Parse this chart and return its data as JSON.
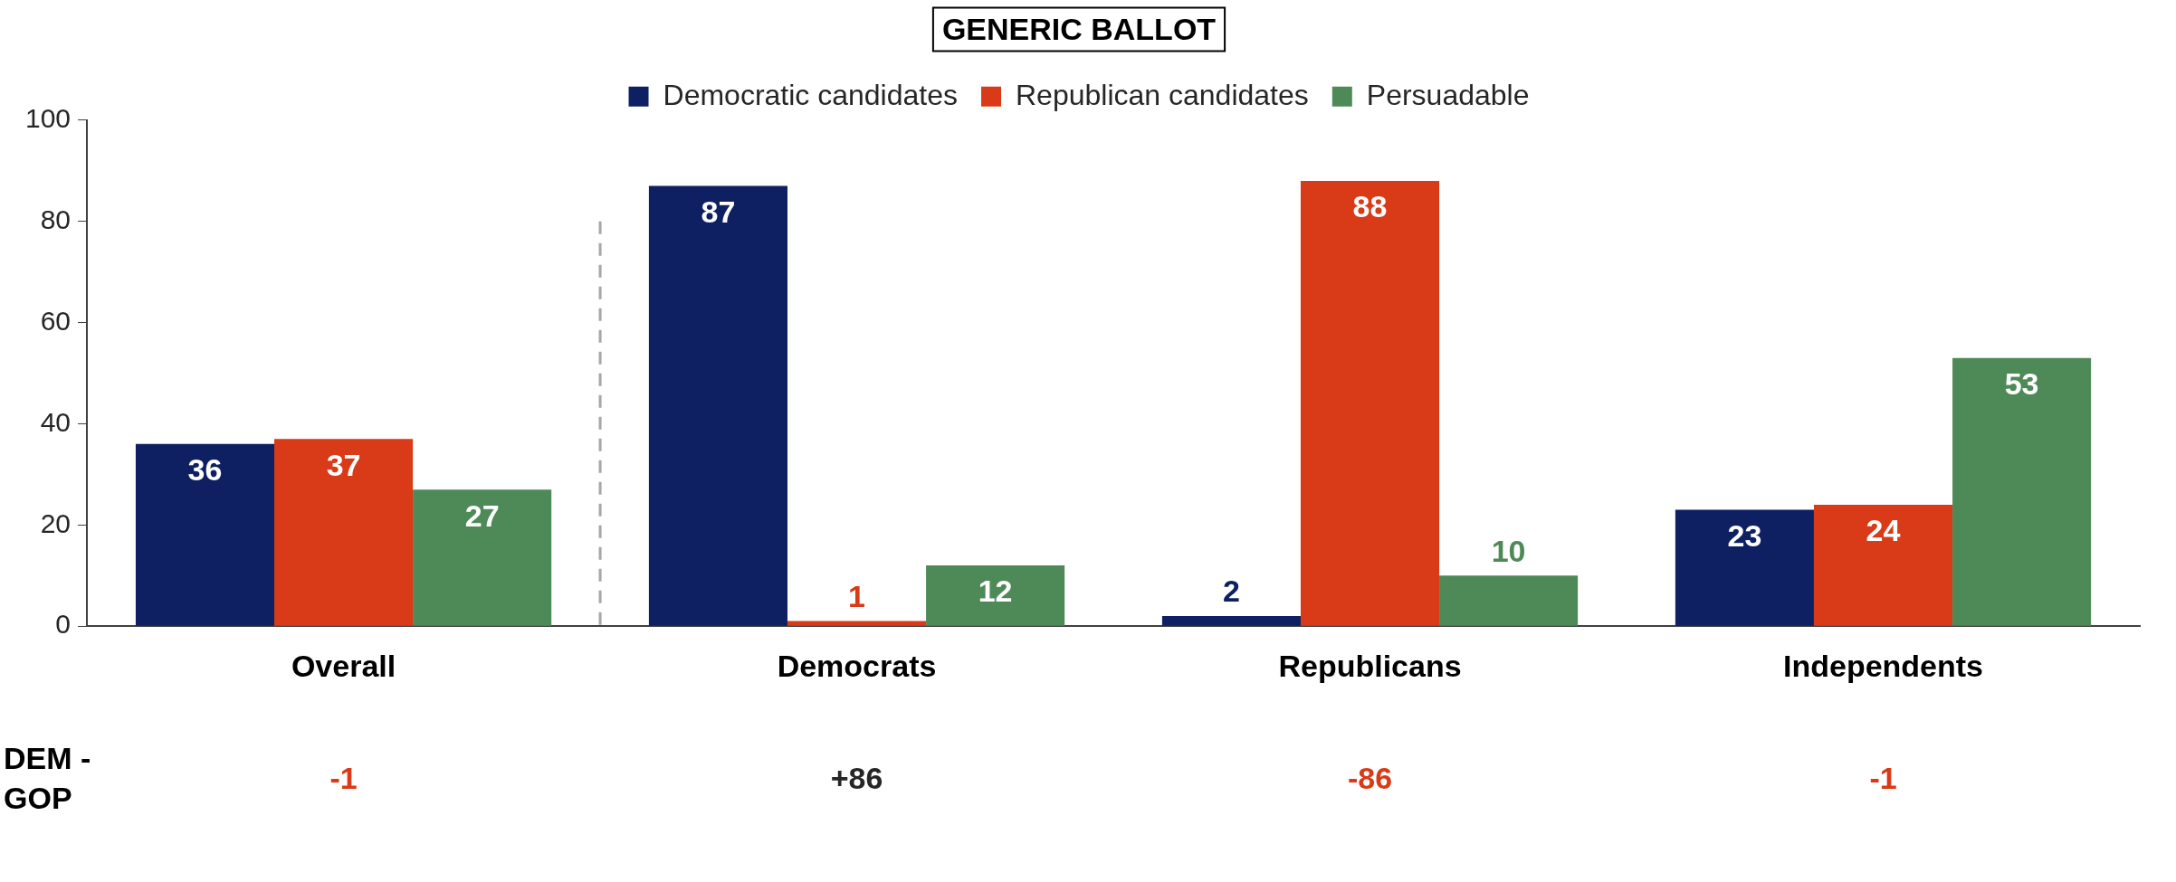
{
  "chart_data": {
    "type": "bar",
    "title": "GENERIC BALLOT",
    "categories": [
      "Overall",
      "Democrats",
      "Republicans",
      "Independents"
    ],
    "series": [
      {
        "name": "Democratic candidates",
        "color": "#0f2062",
        "values": [
          36,
          87,
          2,
          23
        ]
      },
      {
        "name": "Republican candidates",
        "color": "#d93a17",
        "values": [
          37,
          1,
          88,
          24
        ]
      },
      {
        "name": "Persuadable",
        "color": "#4e8a57",
        "values": [
          27,
          12,
          10,
          53
        ]
      }
    ],
    "ylim": [
      0,
      100
    ],
    "yticks": [
      0,
      20,
      40,
      60,
      80,
      100
    ],
    "grid": false,
    "legend": "top",
    "data_labels": true,
    "annotations": [
      "DEM - GOP",
      "-1",
      "+86",
      "-86",
      "-1"
    ]
  }
}
